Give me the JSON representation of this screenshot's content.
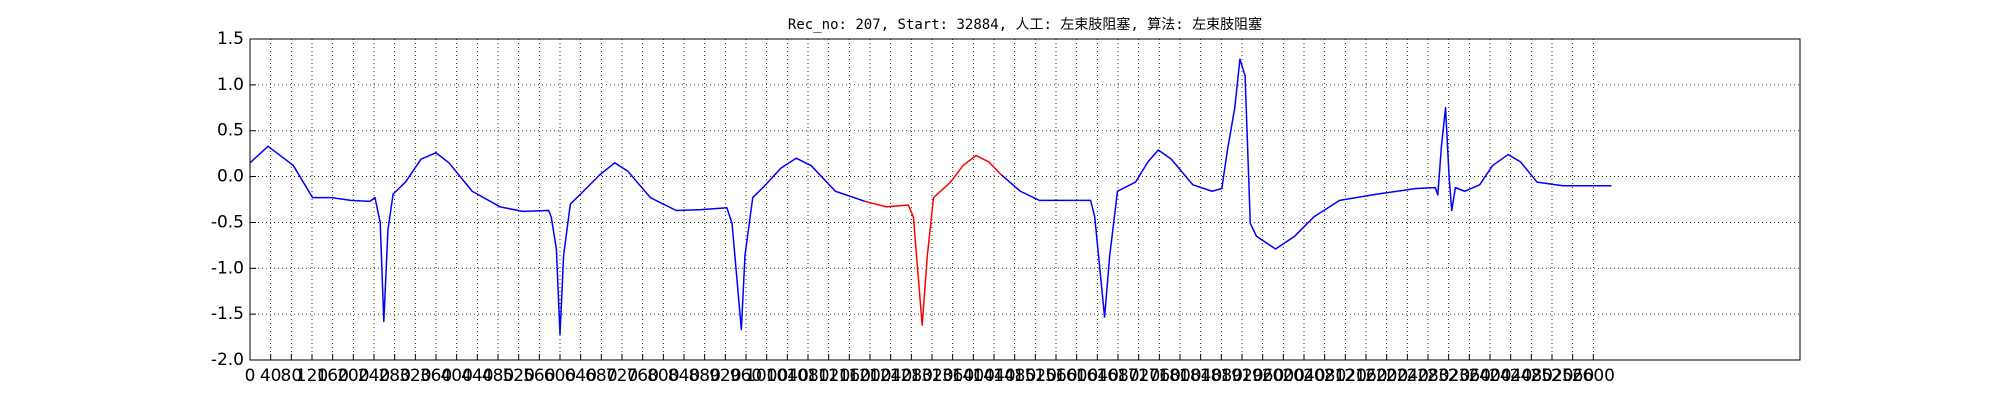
{
  "chart_data": {
    "type": "line",
    "title": "Rec_no: 207, Start: 32884, 人工: 左束肢阻塞, 算法: 左束肢阻塞",
    "x": [
      0,
      35,
      84,
      121,
      158,
      195,
      232,
      242,
      252,
      259,
      267,
      277,
      301,
      331,
      360,
      385,
      430,
      484,
      528,
      578,
      583,
      593,
      600,
      607,
      620,
      640,
      677,
      706,
      731,
      775,
      825,
      874,
      923,
      933,
      951,
      958,
      973,
      998,
      1027,
      1057,
      1086,
      1133,
      1190,
      1232,
      1274,
      1284,
      1301,
      1311,
      1323,
      1356,
      1380,
      1405,
      1430,
      1454,
      1491,
      1528,
      1565,
      1627,
      1635,
      1654,
      1664,
      1679,
      1714,
      1738,
      1758,
      1783,
      1825,
      1862,
      1881,
      1891,
      1906,
      1916,
      1926,
      1936,
      1948,
      1985,
      2022,
      2059,
      2109,
      2183,
      2257,
      2294,
      2299,
      2306,
      2314,
      2321,
      2326,
      2333,
      2351,
      2380,
      2405,
      2435,
      2459,
      2491,
      2541,
      2590,
      2635
    ],
    "series": [
      {
        "color": "#0000ff",
        "values": [
          0.15,
          0.33,
          0.12,
          -0.23,
          -0.23,
          -0.26,
          -0.27,
          -0.23,
          -0.5,
          -1.58,
          -0.58,
          -0.19,
          -0.06,
          0.19,
          0.26,
          0.15,
          -0.16,
          -0.33,
          -0.38,
          -0.37,
          -0.44,
          -0.79,
          -1.72,
          -0.86,
          -0.3,
          -0.19,
          0.02,
          0.15,
          0.06,
          -0.23,
          -0.37,
          -0.36,
          -0.34,
          -0.51,
          -1.67,
          -0.86,
          -0.23,
          -0.09,
          0.09,
          0.2,
          0.12,
          -0.16,
          -0.27,
          null,
          null,
          null,
          null,
          null,
          null,
          null,
          null,
          null,
          null,
          0.02,
          -0.16,
          -0.26,
          -0.26,
          -0.26,
          -0.44,
          -1.53,
          -0.86,
          -0.16,
          -0.06,
          0.16,
          0.29,
          0.19,
          -0.09,
          -0.16,
          -0.13,
          0.26,
          0.75,
          1.28,
          1.1,
          -0.51,
          -0.65,
          -0.79,
          -0.65,
          -0.44,
          -0.26,
          -0.19,
          -0.13,
          -0.12,
          -0.2,
          0.33,
          0.75,
          -0.02,
          -0.37,
          -0.12,
          -0.16,
          -0.09,
          0.12,
          0.24,
          0.16,
          -0.06,
          -0.1,
          -0.1,
          -0.1
        ]
      },
      {
        "color": "#ff0000",
        "values": [
          null,
          null,
          null,
          null,
          null,
          null,
          null,
          null,
          null,
          null,
          null,
          null,
          null,
          null,
          null,
          null,
          null,
          null,
          null,
          null,
          null,
          null,
          null,
          null,
          null,
          null,
          null,
          null,
          null,
          null,
          null,
          null,
          null,
          null,
          null,
          null,
          null,
          null,
          null,
          null,
          null,
          null,
          -0.27,
          -0.33,
          -0.31,
          -0.44,
          -1.62,
          -0.86,
          -0.23,
          -0.06,
          0.12,
          0.23,
          0.16,
          0.02,
          null,
          null,
          null,
          null,
          null,
          null,
          null,
          null,
          null,
          null,
          null,
          null,
          null,
          null,
          null,
          null,
          null,
          null,
          null,
          null,
          null,
          null,
          null,
          null,
          null,
          null,
          null,
          null,
          null,
          null,
          null,
          null,
          null,
          null,
          null,
          null,
          null,
          null,
          null,
          null,
          null,
          null,
          null
        ]
      }
    ],
    "xlim": [
      0,
      3000
    ],
    "xticks": [
      0,
      40,
      80,
      120,
      160,
      200,
      240,
      280,
      320,
      360,
      400,
      440,
      480,
      520,
      560,
      600,
      640,
      680,
      720,
      760,
      800,
      840,
      880,
      920,
      960,
      1000,
      1040,
      1080,
      1120,
      1160,
      1200,
      1240,
      1280,
      1320,
      1360,
      1400,
      1440,
      1480,
      1520,
      1560,
      1600,
      1640,
      1680,
      1720,
      1760,
      1800,
      1840,
      1880,
      1920,
      1960,
      2000,
      2040,
      2080,
      2120,
      2160,
      2200,
      2240,
      2280,
      2320,
      2360,
      2400,
      2440,
      2480,
      2520,
      2560,
      2600
    ],
    "ylim": [
      -2,
      1.5
    ],
    "yticks": [
      {
        "value": -2,
        "label": "-2.0"
      },
      -1.5,
      {
        "value": -1,
        "label": "-1.0"
      },
      -0.5,
      {
        "value": 0,
        "label": "0.0"
      },
      0.5,
      {
        "value": 1,
        "label": "1.0"
      },
      1.5
    ],
    "grid": true
  }
}
